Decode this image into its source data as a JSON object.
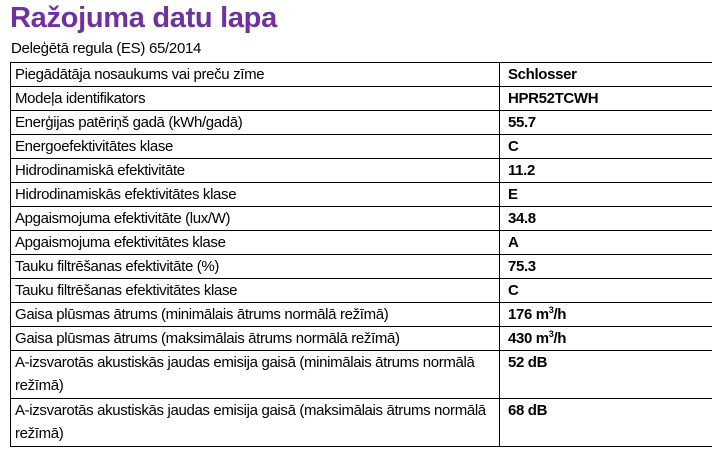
{
  "title": "Ražojuma datu lapa",
  "subtitle": "Deleģētā regula (ES) 65/2014",
  "rows": [
    {
      "label": "Piegādātāja nosaukums vai preču zīme",
      "value": "Schlosser"
    },
    {
      "label": "Modeļa identifikators",
      "value": "HPR52TCWH"
    },
    {
      "label": "Enerģijas patēriņš gadā (kWh/gadā)",
      "value": "55.7"
    },
    {
      "label": "Energoefektivitātes klase",
      "value": "C"
    },
    {
      "label": "Hidrodinamiskā efektivitāte",
      "value": "11.2"
    },
    {
      "label": "Hidrodinamiskās efektivitātes klase",
      "value": "E"
    },
    {
      "label": "Apgaismojuma efektivitāte (lux/W)",
      "value": "34.8"
    },
    {
      "label": "Apgaismojuma efektivitātes klase",
      "value": "A"
    },
    {
      "label": "Tauku filtrēšanas efektivitāte (%)",
      "value": "75.3"
    },
    {
      "label": "Tauku filtrēšanas efektivitātes klase",
      "value": "C"
    },
    {
      "label": "Gaisa plūsmas ātrums (minimālais ātrums normālā režīmā)",
      "value": "176 m",
      "unit_sup": "3",
      "unit_tail": "/h"
    },
    {
      "label": "Gaisa plūsmas ātrums (maksimālais ātrums normālā režīmā)",
      "value": "430 m",
      "unit_sup": "3",
      "unit_tail": "/h"
    },
    {
      "label": "A-izsvarotās akustiskās jaudas emisija gaisā (minimālais ātrums normālā režīmā)",
      "value": "52 dB"
    },
    {
      "label": "A-izsvarotās akustiskās jaudas emisija gaisā (maksimālais ātrums normālā režīmā)",
      "value": "68 dB"
    }
  ]
}
